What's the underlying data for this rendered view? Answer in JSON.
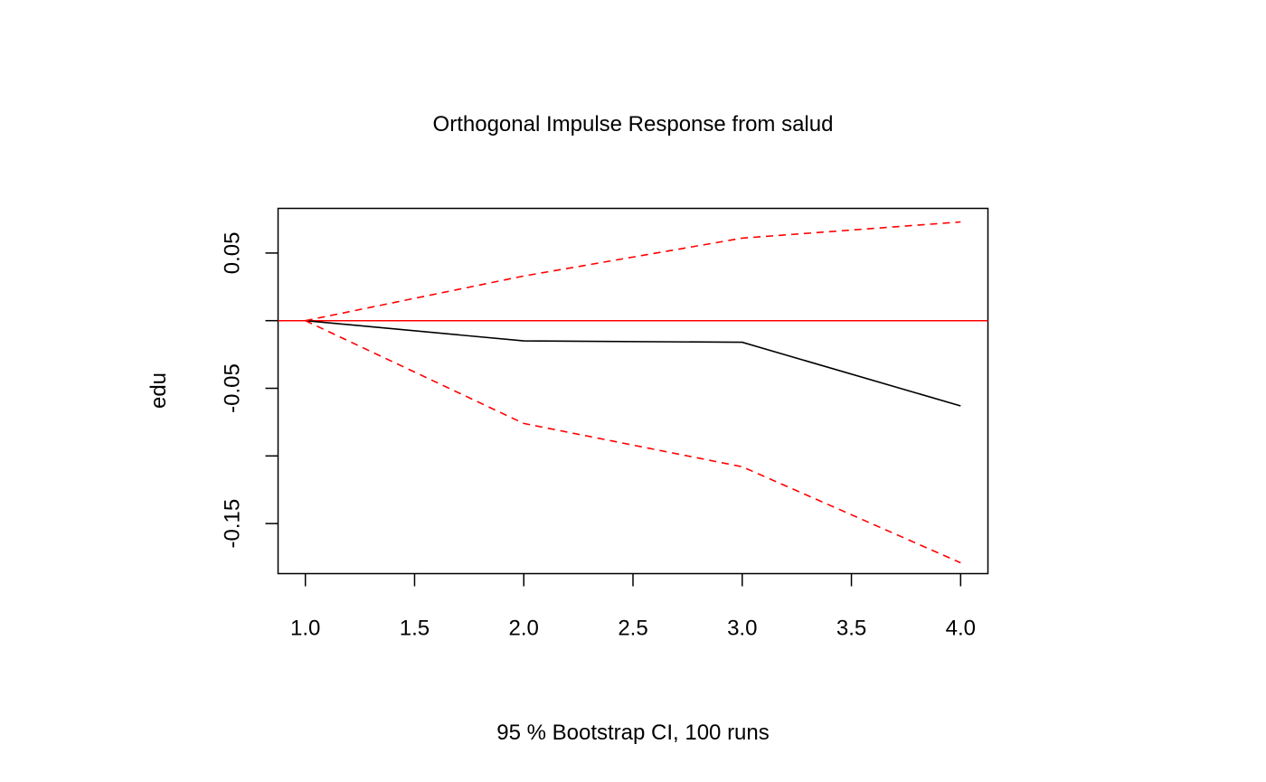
{
  "chart_data": {
    "type": "line",
    "title": "Orthogonal Impulse Response from salud",
    "xlabel": "95 % Bootstrap CI,  100 runs",
    "ylabel": "edu",
    "x": [
      1,
      2,
      3,
      4
    ],
    "xlim": [
      0.875,
      4.125
    ],
    "ylim": [
      -0.187,
      0.083
    ],
    "x_ticks": [
      1.0,
      1.5,
      2.0,
      2.5,
      3.0,
      3.5,
      4.0
    ],
    "x_tick_labels": [
      "1.0",
      "1.5",
      "2.0",
      "2.5",
      "3.0",
      "3.5",
      "4.0"
    ],
    "y_ticks": [
      -0.15,
      -0.1,
      -0.05,
      0.0,
      0.05
    ],
    "y_tick_labels": [
      "-0.15",
      "",
      "-0.05",
      "",
      "0.05"
    ],
    "grid": false,
    "series": [
      {
        "role": "response",
        "values": [
          0.0,
          -0.015,
          -0.016,
          -0.063
        ],
        "color": "#000000",
        "dash": "solid"
      },
      {
        "role": "upper",
        "values": [
          0.0,
          0.033,
          0.061,
          0.073
        ],
        "color": "#ff0000",
        "dash": "dashed"
      },
      {
        "role": "lower",
        "values": [
          0.0,
          -0.076,
          -0.108,
          -0.179
        ],
        "color": "#ff0000",
        "dash": "dashed"
      }
    ],
    "hlines": [
      {
        "y": 0,
        "color": "#ff0000"
      }
    ]
  }
}
